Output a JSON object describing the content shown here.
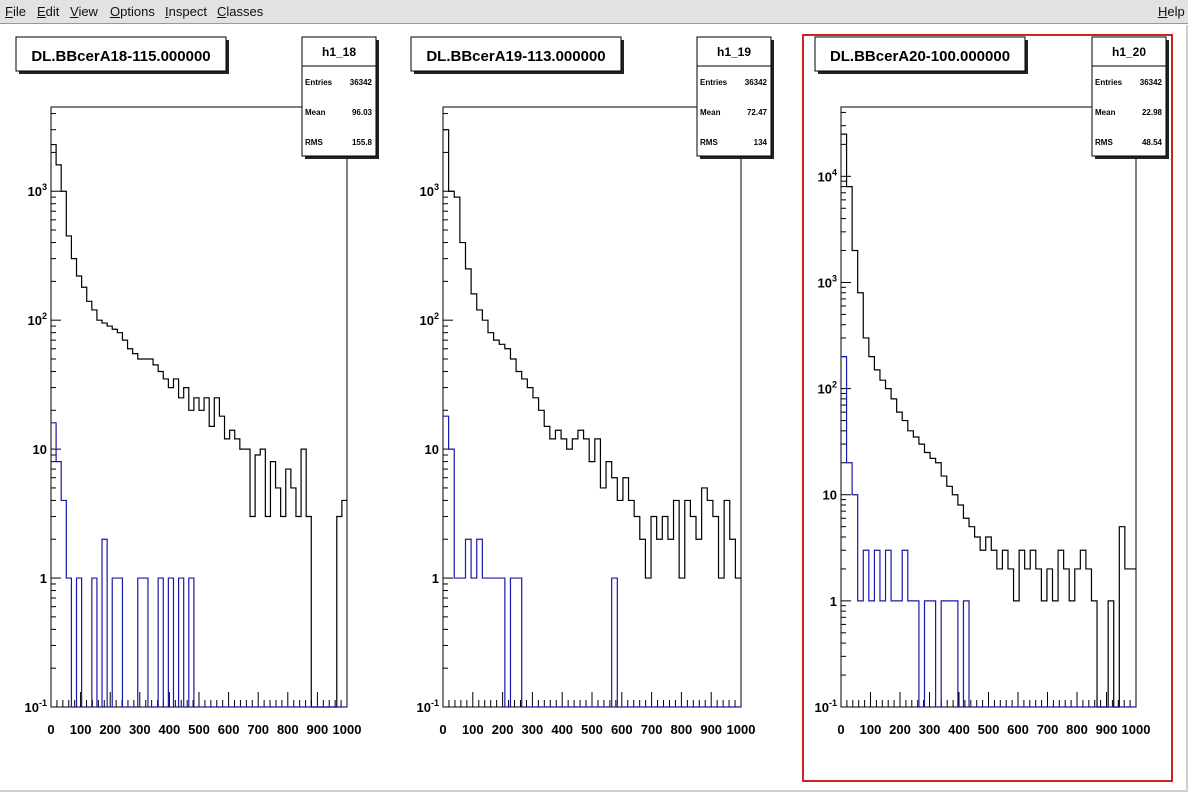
{
  "menu": {
    "file": "File",
    "edit": "Edit",
    "view": "View",
    "options": "Options",
    "inspect": "Inspect",
    "classes": "Classes",
    "help": "Help"
  },
  "stats_labels": {
    "entries": "Entries",
    "mean": "Mean",
    "rms": "RMS"
  },
  "colors": {
    "primary_line": "#000000",
    "secondary_line": "#1a1aaa",
    "selection": "#cc2222"
  },
  "chart_data": [
    {
      "type": "histogram",
      "title": "DL.BBcerA18-115.000000",
      "stats": {
        "name": "h1_18",
        "entries": "36342",
        "mean": "96.03",
        "rms": "155.8"
      },
      "xlim": [
        0,
        1000
      ],
      "ylim": [
        0.1,
        4500
      ],
      "log_y": true,
      "xticks": [
        "0",
        "100",
        "200",
        "300",
        "400",
        "500",
        "600",
        "700",
        "800",
        "900",
        "1000"
      ],
      "yticks": [
        {
          "value": 1000,
          "base": "10",
          "exp": "3"
        },
        {
          "value": 100,
          "base": "10",
          "exp": "2"
        },
        {
          "value": 10,
          "base": "10",
          "exp": ""
        },
        {
          "value": 1,
          "base": "1",
          "exp": ""
        },
        {
          "value": 0.1,
          "base": "10",
          "exp": "-1"
        }
      ],
      "series": [
        {
          "values": [
            2300,
            1600,
            1000,
            450,
            300,
            220,
            180,
            140,
            120,
            100,
            95,
            90,
            85,
            80,
            70,
            60,
            55,
            50,
            50,
            50,
            45,
            40,
            35,
            30,
            35,
            25,
            30,
            20,
            25,
            20,
            25,
            15,
            25,
            18,
            12,
            14,
            12,
            10,
            10,
            3,
            9,
            10,
            3,
            8,
            5,
            3,
            7,
            5,
            3,
            10,
            3,
            0.1,
            0.1,
            0.1,
            0.1,
            0.1,
            3,
            4
          ]
        },
        {
          "values": [
            16,
            8,
            4,
            1,
            0.1,
            1,
            0.1,
            0.1,
            1,
            0.1,
            2,
            0.1,
            1,
            1,
            0.1,
            0.1,
            0.1,
            1,
            1,
            0.1,
            0.1,
            1,
            0.1,
            1,
            0.1,
            1,
            0.1,
            1,
            0.1,
            0.1,
            0.1,
            0.1,
            0.1,
            0.1,
            0.1,
            0.1,
            0.1,
            0.1,
            0.1,
            0.1,
            0.1,
            0.1,
            0.1,
            0.1,
            0.1,
            0.1,
            0.1,
            0.1,
            0.1,
            0.1,
            0.1,
            0.1,
            0.1,
            0.1,
            0.1,
            0.1,
            0.1,
            0.1
          ]
        }
      ],
      "selected": false
    },
    {
      "type": "histogram",
      "title": "DL.BBcerA19-113.000000",
      "stats": {
        "name": "h1_19",
        "entries": "36342",
        "mean": "72.47",
        "rms": "134"
      },
      "xlim": [
        0,
        1000
      ],
      "ylim": [
        0.1,
        4500
      ],
      "log_y": true,
      "xticks": [
        "0",
        "100",
        "200",
        "300",
        "400",
        "500",
        "600",
        "700",
        "800",
        "900",
        "1000"
      ],
      "yticks": [
        {
          "value": 1000,
          "base": "10",
          "exp": "3"
        },
        {
          "value": 100,
          "base": "10",
          "exp": "2"
        },
        {
          "value": 10,
          "base": "10",
          "exp": ""
        },
        {
          "value": 1,
          "base": "1",
          "exp": ""
        },
        {
          "value": 0.1,
          "base": "10",
          "exp": "-1"
        }
      ],
      "series": [
        {
          "values": [
            3000,
            1000,
            900,
            400,
            250,
            160,
            120,
            100,
            80,
            70,
            65,
            60,
            50,
            40,
            35,
            30,
            25,
            20,
            15,
            12,
            14,
            12,
            10,
            12,
            14,
            12,
            8,
            12,
            5,
            8,
            6,
            4,
            6,
            4,
            3,
            2,
            1,
            3,
            2,
            3,
            2,
            4,
            1,
            4,
            3,
            2,
            5,
            4,
            3,
            1,
            4,
            2,
            1
          ]
        },
        {
          "values": [
            18,
            10,
            1,
            1,
            2,
            1,
            2,
            1,
            1,
            1,
            1,
            0.1,
            1,
            1,
            0.1,
            0.1,
            0.1,
            0.1,
            0.1,
            0.1,
            0.1,
            0.1,
            0.1,
            0.1,
            0.1,
            0.1,
            0.1,
            0.1,
            0.1,
            0.1,
            1,
            0.1,
            0.1,
            0.1,
            0.1,
            0.1,
            0.1,
            0.1,
            0.1,
            0.1,
            0.1,
            0.1,
            0.1,
            0.1,
            0.1,
            0.1,
            0.1,
            0.1,
            0.1,
            0.1,
            0.1,
            0.1,
            0.1
          ]
        }
      ],
      "selected": false
    },
    {
      "type": "histogram",
      "title": "DL.BBcerA20-100.000000",
      "stats": {
        "name": "h1_20",
        "entries": "36342",
        "mean": "22.98",
        "rms": "48.54"
      },
      "xlim": [
        0,
        1000
      ],
      "ylim": [
        0.1,
        45000
      ],
      "log_y": true,
      "xticks": [
        "0",
        "100",
        "200",
        "300",
        "400",
        "500",
        "600",
        "700",
        "800",
        "900",
        "1000"
      ],
      "yticks": [
        {
          "value": 10000,
          "base": "10",
          "exp": "4"
        },
        {
          "value": 1000,
          "base": "10",
          "exp": "3"
        },
        {
          "value": 100,
          "base": "10",
          "exp": "2"
        },
        {
          "value": 10,
          "base": "10",
          "exp": ""
        },
        {
          "value": 1,
          "base": "1",
          "exp": ""
        },
        {
          "value": 0.1,
          "base": "10",
          "exp": "-1"
        }
      ],
      "series": [
        {
          "values": [
            25000,
            8000,
            2000,
            800,
            300,
            200,
            150,
            120,
            100,
            80,
            60,
            50,
            40,
            35,
            30,
            25,
            22,
            20,
            15,
            12,
            10,
            8,
            6,
            5,
            4,
            3,
            4,
            3,
            2,
            3,
            2,
            1,
            3,
            2,
            3,
            2,
            1,
            2,
            1,
            3,
            2,
            1,
            2,
            3,
            2,
            1,
            0.1,
            0.1,
            1,
            0.1,
            5,
            2,
            2
          ]
        },
        {
          "values": [
            200,
            20,
            10,
            1,
            3,
            1,
            3,
            1,
            3,
            1,
            1,
            3,
            1,
            1,
            0.1,
            1,
            1,
            0.1,
            1,
            1,
            1,
            0.1,
            1,
            0.1,
            0.1,
            0.1,
            0.1,
            0.1,
            0.1,
            0.1,
            0.1,
            0.1,
            0.1,
            0.1,
            0.1,
            0.1,
            0.1,
            0.1,
            0.1,
            0.1,
            0.1,
            0.1,
            0.1,
            0.1,
            0.1,
            0.1,
            0.1,
            0.1,
            0.1,
            0.1,
            0.1,
            0.1,
            0.1
          ]
        }
      ],
      "selected": true
    }
  ]
}
